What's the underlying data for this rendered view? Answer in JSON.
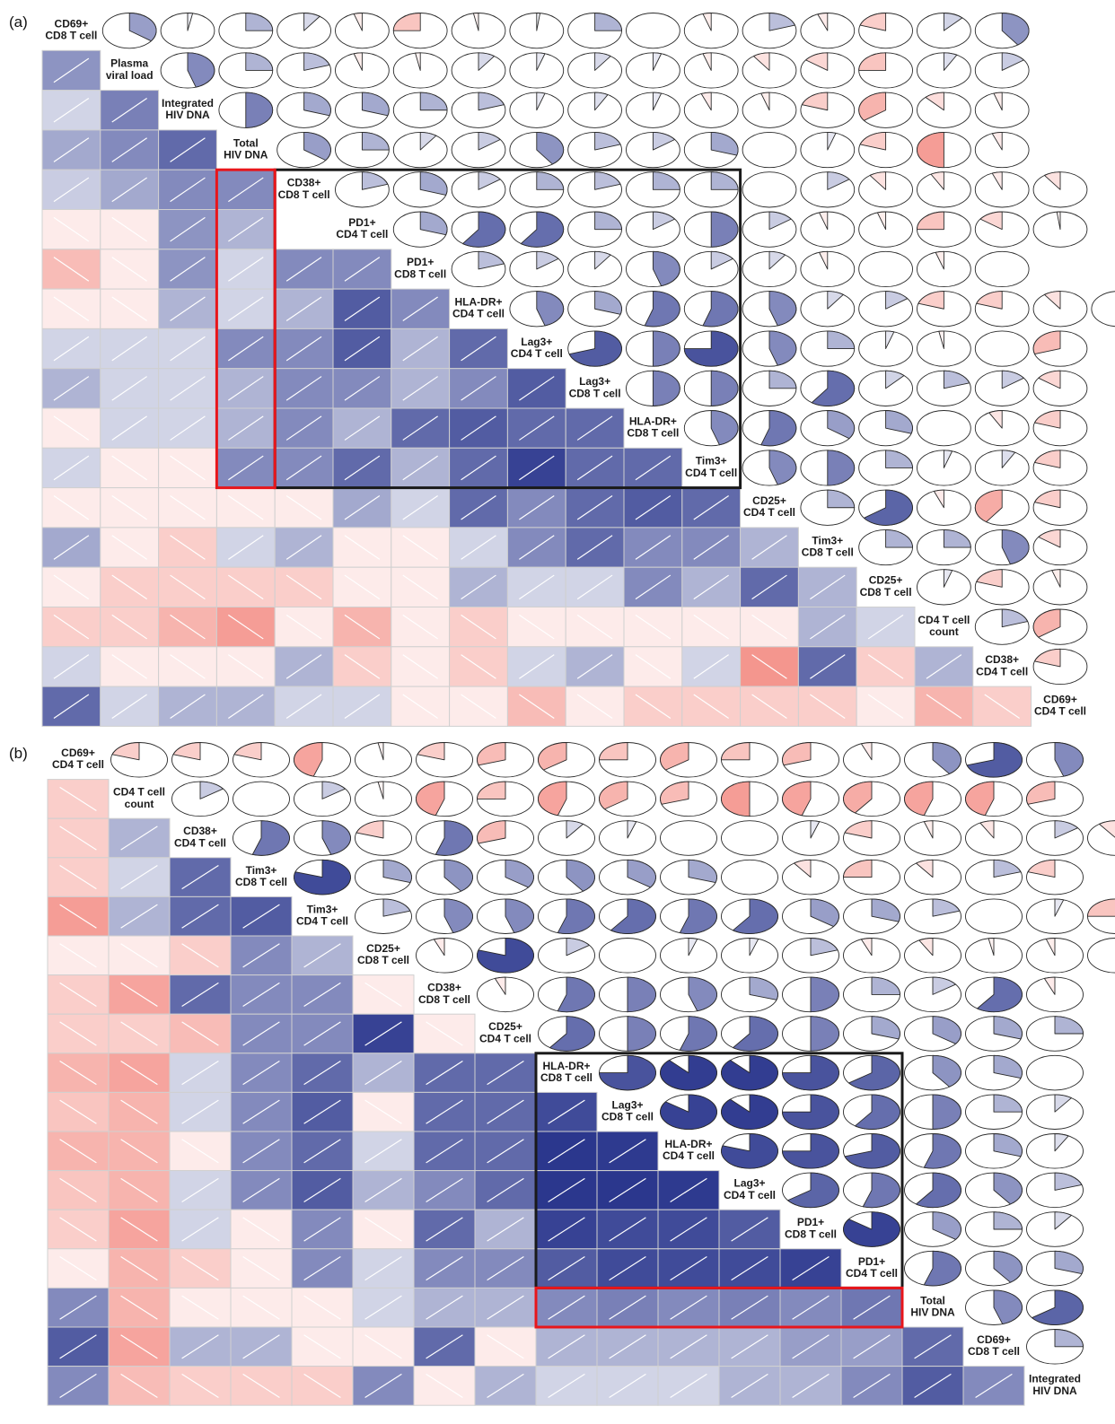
{
  "colors": {
    "strong_negative": "#ee5a4e",
    "strong_positive": "#1d2a86",
    "neutral": "#ffffff",
    "cell_border": "#d0d0d0",
    "highlight_black": "#1a1a1a",
    "highlight_red": "#e8161b"
  },
  "chart_data": [
    {
      "panel": "(a)",
      "type": "heatmap",
      "subtype": "correlogram-pie-upper-shade-lower",
      "variables": [
        [
          "CD69+",
          "CD8 T cell"
        ],
        [
          "Plasma",
          "viral load"
        ],
        [
          "Integrated",
          "HIV DNA"
        ],
        [
          "Total",
          "HIV DNA"
        ],
        [
          "CD38+",
          "CD8 T cell"
        ],
        [
          "PD1+",
          "CD4 T cell"
        ],
        [
          "PD1+",
          "CD8 T cell"
        ],
        [
          "HLA-DR+",
          "CD4 T cell"
        ],
        [
          "Lag3+",
          "CD4 T cell"
        ],
        [
          "Lag3+",
          "CD8 T cell"
        ],
        [
          "HLA-DR+",
          "CD8 T cell"
        ],
        [
          "Tim3+",
          "CD4 T cell"
        ],
        [
          "CD25+",
          "CD4 T cell"
        ],
        [
          "Tim3+",
          "CD8 T cell"
        ],
        [
          "CD25+",
          "CD8 T cell"
        ],
        [
          "CD4 T cell",
          "count"
        ],
        [
          "CD38+",
          "CD4 T cell"
        ],
        [
          "CD69+",
          "CD4 T cell"
        ]
      ],
      "lower_rows": [
        [
          0.4
        ],
        [
          0.12,
          0.5
        ],
        [
          0.3,
          0.45,
          0.62
        ],
        [
          0.15,
          0.3,
          0.45,
          0.45
        ],
        [
          -0.06,
          -0.06,
          0.4,
          0.25
        ],
        [
          -0.3,
          -0.06,
          0.4,
          0.12,
          0.45,
          0.45
        ],
        [
          -0.06,
          -0.06,
          0.25,
          0.12,
          0.25,
          0.7,
          0.45
        ],
        [
          0.12,
          0.12,
          0.12,
          0.45,
          0.45,
          0.7,
          0.25,
          0.62
        ],
        [
          0.25,
          0.12,
          0.12,
          0.25,
          0.45,
          0.45,
          0.25,
          0.45,
          0.7
        ],
        [
          -0.06,
          0.12,
          0.12,
          0.25,
          0.45,
          0.25,
          0.62,
          0.7,
          0.62,
          0.62
        ],
        [
          0.12,
          -0.06,
          -0.06,
          0.45,
          0.45,
          0.62,
          0.25,
          0.62,
          0.85,
          0.62,
          0.62
        ],
        [
          -0.06,
          -0.06,
          -0.06,
          -0.06,
          -0.06,
          0.3,
          0.12,
          0.62,
          0.45,
          0.62,
          0.7,
          0.62
        ],
        [
          0.3,
          -0.06,
          -0.2,
          0.12,
          0.25,
          -0.06,
          -0.06,
          0.12,
          0.45,
          0.62,
          0.45,
          0.45,
          0.25
        ],
        [
          -0.06,
          -0.2,
          -0.2,
          -0.2,
          -0.2,
          -0.06,
          -0.06,
          0.25,
          0.12,
          0.12,
          0.45,
          0.25,
          0.62,
          0.25
        ],
        [
          -0.2,
          -0.2,
          -0.35,
          -0.5,
          -0.06,
          -0.35,
          -0.06,
          -0.2,
          -0.06,
          -0.06,
          -0.06,
          -0.06,
          -0.06,
          0.25,
          0.12
        ],
        [
          0.12,
          -0.06,
          -0.06,
          -0.06,
          0.25,
          -0.2,
          -0.06,
          -0.2,
          0.12,
          0.25,
          -0.06,
          0.12,
          -0.55,
          0.62,
          -0.2,
          0.25
        ],
        [
          0.62,
          0.12,
          0.25,
          0.25,
          0.12,
          0.12,
          -0.06,
          -0.06,
          -0.3,
          -0.06,
          -0.2,
          -0.2,
          -0.2,
          -0.2,
          -0.06,
          -0.35,
          -0.2
        ]
      ],
      "upper_rows": [
        [
          0.35,
          0.03,
          0.25,
          0.1,
          -0.05,
          -0.25,
          -0.03,
          0.02,
          0.25,
          0.0,
          -0.05,
          0.2,
          -0.06,
          -0.2,
          0.12,
          0.4
        ],
        [
          0.45,
          0.25,
          0.2,
          -0.05,
          -0.03,
          0.1,
          0.05,
          0.1,
          0.05,
          -0.05,
          -0.1,
          -0.15,
          -0.25,
          0.08,
          0.15
        ],
        [
          0.5,
          0.3,
          0.3,
          0.25,
          0.2,
          0.05,
          0.08,
          0.05,
          -0.06,
          -0.05,
          -0.2,
          -0.35,
          -0.12,
          -0.05
        ],
        [
          0.35,
          0.25,
          0.1,
          0.15,
          0.4,
          0.2,
          0.15,
          0.3,
          0.0,
          0.05,
          -0.2,
          -0.5,
          -0.06
        ],
        [
          0.2,
          0.3,
          0.15,
          0.25,
          0.2,
          0.25,
          0.25,
          0.0,
          0.15,
          -0.1,
          -0.08,
          -0.06,
          -0.1
        ],
        [
          0.3,
          0.6,
          0.6,
          0.25,
          0.15,
          0.5,
          0.15,
          -0.05,
          -0.05,
          -0.25,
          -0.15,
          -0.02
        ],
        [
          0.2,
          0.15,
          0.1,
          0.45,
          0.15,
          0.1,
          -0.05,
          -0.0,
          -0.05,
          -0.0
        ],
        [
          0.45,
          0.3,
          0.55,
          0.55,
          0.45,
          0.1,
          0.15,
          -0.2,
          -0.2,
          -0.1,
          0.0
        ],
        [
          0.7,
          0.5,
          0.75,
          0.45,
          0.25,
          0.05,
          -0.03,
          0.0,
          -0.3
        ],
        [
          0.5,
          0.5,
          0.25,
          0.6,
          0.12,
          0.2,
          0.15,
          -0.15
        ],
        [
          0.45,
          0.55,
          0.35,
          0.3,
          0.0,
          -0.08,
          -0.2
        ],
        [
          0.45,
          0.5,
          0.25,
          0.05,
          0.08,
          -0.2
        ],
        [
          0.25,
          0.65,
          -0.06,
          -0.4,
          -0.2
        ],
        [
          0.25,
          0.25,
          0.45,
          -0.15
        ],
        [
          0.05,
          -0.2,
          -0.05
        ],
        [
          0.2,
          -0.35
        ],
        [
          -0.2
        ],
        []
      ],
      "highlights": [
        {
          "color": "black",
          "rows": [
            4,
            11
          ],
          "cols": [
            4,
            11
          ]
        },
        {
          "color": "red",
          "rows": [
            4,
            11
          ],
          "cols": [
            3,
            3
          ]
        }
      ]
    },
    {
      "panel": "(b)",
      "type": "heatmap",
      "subtype": "correlogram-pie-upper-shade-lower",
      "variables": [
        [
          "CD69+",
          "CD4 T cell"
        ],
        [
          "CD4 T cell",
          "count"
        ],
        [
          "CD38+",
          "CD4 T cell"
        ],
        [
          "Tim3+",
          "CD8 T cell"
        ],
        [
          "Tim3+",
          "CD4 T cell"
        ],
        [
          "CD25+",
          "CD8 T cell"
        ],
        [
          "CD38+",
          "CD8 T cell"
        ],
        [
          "CD25+",
          "CD4 T cell"
        ],
        [
          "HLA-DR+",
          "CD8 T cell"
        ],
        [
          "Lag3+",
          "CD8 T cell"
        ],
        [
          "HLA-DR+",
          "CD4 T cell"
        ],
        [
          "Lag3+",
          "CD4 T cell"
        ],
        [
          "PD1+",
          "CD8 T cell"
        ],
        [
          "PD1+",
          "CD4 T cell"
        ],
        [
          "Total",
          "HIV DNA"
        ],
        [
          "CD69+",
          "CD8 T cell"
        ],
        [
          "Integrated",
          "HIV DNA"
        ]
      ],
      "lower_rows": [
        [
          -0.2
        ],
        [
          -0.2,
          0.25
        ],
        [
          -0.2,
          0.12,
          0.62
        ],
        [
          -0.5,
          0.25,
          0.62,
          0.7
        ],
        [
          -0.06,
          -0.06,
          -0.2,
          0.45,
          0.25
        ],
        [
          -0.2,
          -0.45,
          0.62,
          0.45,
          0.45,
          -0.06
        ],
        [
          -0.2,
          -0.2,
          -0.3,
          0.45,
          0.45,
          0.85,
          -0.06
        ],
        [
          -0.35,
          -0.45,
          0.12,
          0.45,
          0.62,
          0.25,
          0.62,
          0.62
        ],
        [
          -0.25,
          -0.35,
          0.12,
          0.45,
          0.7,
          -0.06,
          0.62,
          0.62,
          0.8
        ],
        [
          -0.35,
          -0.35,
          -0.06,
          0.45,
          0.62,
          0.12,
          0.62,
          0.62,
          0.92,
          0.9
        ],
        [
          -0.25,
          -0.35,
          0.12,
          0.45,
          0.7,
          0.25,
          0.45,
          0.62,
          0.92,
          0.92,
          0.9
        ],
        [
          -0.2,
          -0.45,
          0.12,
          -0.06,
          0.45,
          -0.06,
          0.62,
          0.25,
          0.85,
          0.8,
          0.8,
          0.7
        ],
        [
          -0.06,
          -0.35,
          -0.2,
          -0.06,
          0.45,
          0.12,
          0.45,
          0.45,
          0.7,
          0.8,
          0.8,
          0.8,
          0.85
        ],
        [
          0.45,
          -0.35,
          -0.06,
          -0.06,
          -0.06,
          0.12,
          0.25,
          0.25,
          0.45,
          0.5,
          0.45,
          0.5,
          0.45,
          0.55
        ],
        [
          0.7,
          -0.45,
          0.25,
          0.25,
          -0.06,
          -0.06,
          0.62,
          -0.06,
          0.25,
          0.25,
          0.25,
          0.25,
          0.35,
          0.35,
          0.62
        ],
        [
          0.45,
          -0.3,
          -0.2,
          -0.2,
          -0.2,
          0.45,
          -0.06,
          0.25,
          0.12,
          0.12,
          0.12,
          0.25,
          0.25,
          0.45,
          0.7,
          0.45
        ]
      ],
      "upper_rows": [
        [
          -0.2,
          -0.2,
          -0.2,
          -0.45,
          -0.03,
          -0.2,
          -0.3,
          -0.35,
          -0.25,
          -0.35,
          -0.25,
          -0.3,
          -0.06,
          0.4,
          0.7,
          0.45
        ],
        [
          0.15,
          0.0,
          0.15,
          -0.03,
          -0.45,
          -0.25,
          -0.45,
          -0.35,
          -0.3,
          -0.5,
          -0.45,
          -0.4,
          -0.45,
          -0.45,
          -0.3
        ],
        [
          0.55,
          0.45,
          -0.2,
          0.55,
          -0.3,
          0.1,
          0.05,
          -0.0,
          0.0,
          0.05,
          -0.2,
          -0.05,
          -0.08,
          0.15,
          -0.1
        ],
        [
          0.8,
          0.3,
          0.4,
          0.35,
          0.4,
          0.35,
          0.3,
          0.0,
          -0.1,
          -0.25,
          -0.1,
          0.2,
          -0.2
        ],
        [
          0.2,
          0.45,
          0.45,
          0.55,
          0.6,
          0.55,
          0.6,
          0.35,
          0.3,
          0.2,
          0.0,
          0.05,
          -0.25
        ],
        [
          -0.06,
          0.8,
          0.15,
          -0.0,
          0.05,
          0.05,
          0.2,
          -0.06,
          -0.08,
          -0.03,
          -0.05,
          0.4
        ],
        [
          -0.06,
          0.55,
          0.5,
          0.45,
          0.3,
          0.5,
          0.25,
          0.15,
          0.6,
          -0.06
        ],
        [
          0.6,
          0.5,
          0.55,
          0.6,
          0.5,
          0.3,
          0.35,
          0.3,
          0.25
        ],
        [
          0.75,
          0.88,
          0.88,
          0.75,
          0.65,
          0.4,
          0.3,
          -0.0
        ],
        [
          0.85,
          0.88,
          0.75,
          0.6,
          0.5,
          0.25,
          0.1
        ],
        [
          0.8,
          0.75,
          0.7,
          0.55,
          0.3,
          0.08
        ],
        [
          0.65,
          0.55,
          0.6,
          0.4,
          0.2
        ],
        [
          0.85,
          0.35,
          0.25,
          0.1
        ],
        [
          0.55,
          0.4,
          0.3
        ],
        [
          0.45,
          0.65
        ],
        [
          0.25
        ],
        []
      ],
      "highlights": [
        {
          "color": "black",
          "rows": [
            8,
            13
          ],
          "cols": [
            8,
            13
          ]
        },
        {
          "color": "red",
          "rows": [
            14,
            14
          ],
          "cols": [
            8,
            13
          ]
        }
      ]
    }
  ]
}
